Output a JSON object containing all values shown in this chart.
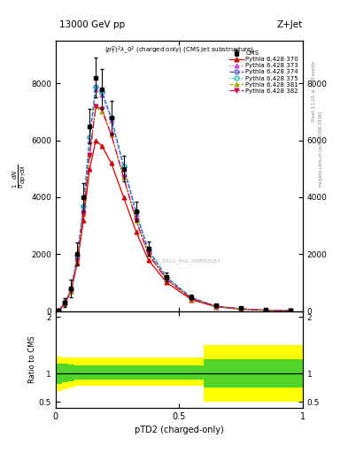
{
  "title_top": "13000 GeV pp",
  "title_right": "Z+Jet",
  "observable_label": "$(p_T^D)^2\\lambda\\_0^2$ (charged only) (CMS jet substructure)",
  "ylabel_main": "$\\frac{1}{\\sigma}\\frac{d^2N}{dp_T\\,d\\lambda}$",
  "xlabel": "pTD2 (charged-only)",
  "ylabel_ratio": "Ratio to CMS",
  "watermark": "CMS_2021_PAS_SMP20187",
  "rivet_label": "Rivet 3.1.10, ≥ 2.6M events",
  "mcplots_label": "mcplots.cern.ch [arXiv:1306.3436]",
  "xbins": [
    0.0,
    0.025,
    0.05,
    0.075,
    0.1,
    0.125,
    0.15,
    0.175,
    0.2,
    0.25,
    0.3,
    0.35,
    0.4,
    0.5,
    0.6,
    0.7,
    0.8,
    0.9,
    1.0
  ],
  "cms_data": [
    20,
    300,
    800,
    2000,
    4000,
    6500,
    8200,
    7800,
    6800,
    5000,
    3500,
    2200,
    1200,
    500,
    200,
    100,
    50,
    20
  ],
  "cms_err_lo": [
    10,
    150,
    300,
    400,
    500,
    600,
    700,
    700,
    600,
    450,
    350,
    250,
    150,
    80,
    40,
    25,
    15,
    8
  ],
  "cms_err_hi": [
    10,
    150,
    300,
    400,
    500,
    600,
    700,
    700,
    600,
    450,
    350,
    250,
    150,
    80,
    40,
    25,
    15,
    8
  ],
  "pythia_370": [
    20,
    280,
    700,
    1700,
    3200,
    5000,
    6000,
    5800,
    5200,
    4000,
    2800,
    1800,
    1000,
    400,
    150,
    70,
    30,
    12
  ],
  "pythia_373": [
    20,
    290,
    750,
    1900,
    3600,
    6000,
    7800,
    7600,
    6700,
    5000,
    3400,
    2100,
    1150,
    460,
    170,
    80,
    32,
    13
  ],
  "pythia_374": [
    20,
    295,
    760,
    1950,
    3700,
    6100,
    7900,
    7700,
    6800,
    5100,
    3500,
    2150,
    1180,
    470,
    175,
    82,
    33,
    13
  ],
  "pythia_375": [
    20,
    295,
    760,
    1950,
    3700,
    6100,
    7900,
    7700,
    6800,
    5100,
    3500,
    2150,
    1180,
    470,
    175,
    82,
    33,
    13
  ],
  "pythia_381": [
    20,
    285,
    720,
    1800,
    3400,
    5500,
    7200,
    7000,
    6200,
    4700,
    3200,
    2000,
    1100,
    440,
    165,
    77,
    31,
    12
  ],
  "pythia_382": [
    20,
    285,
    720,
    1800,
    3400,
    5500,
    7200,
    7100,
    6200,
    4700,
    3200,
    2000,
    1100,
    440,
    165,
    77,
    31,
    12
  ],
  "ratio_yellow_lo": [
    0.7,
    0.72,
    0.75,
    0.78,
    0.78,
    0.78,
    0.78,
    0.78,
    0.78,
    0.78,
    0.78,
    0.78,
    0.78,
    0.78,
    0.5,
    0.5,
    0.5,
    0.5
  ],
  "ratio_yellow_hi": [
    1.3,
    1.28,
    1.28,
    1.28,
    1.28,
    1.28,
    1.28,
    1.28,
    1.28,
    1.28,
    1.28,
    1.28,
    1.28,
    1.28,
    1.5,
    1.5,
    1.5,
    1.5
  ],
  "ratio_green_lo": [
    0.82,
    0.85,
    0.87,
    0.9,
    0.9,
    0.9,
    0.9,
    0.9,
    0.9,
    0.9,
    0.9,
    0.9,
    0.9,
    0.9,
    0.75,
    0.75,
    0.75,
    0.75
  ],
  "ratio_green_hi": [
    1.18,
    1.18,
    1.16,
    1.15,
    1.15,
    1.15,
    1.15,
    1.15,
    1.15,
    1.15,
    1.15,
    1.15,
    1.15,
    1.15,
    1.25,
    1.25,
    1.25,
    1.25
  ],
  "colors": {
    "370": "#cc0000",
    "373": "#cc44cc",
    "374": "#4444cc",
    "375": "#00bbbb",
    "381": "#aaaa00",
    "382": "#cc0055"
  },
  "markers": {
    "370": "^",
    "373": "^",
    "374": "o",
    "375": "o",
    "381": "^",
    "382": "v"
  },
  "linestyles": {
    "370": "-",
    "373": ":",
    "374": "--",
    "375": ":",
    "381": "--",
    "382": "-."
  },
  "ylim_main": [
    0,
    9500
  ],
  "yticks_main": [
    0,
    2000,
    4000,
    6000,
    8000
  ],
  "xlim": [
    0,
    1.0
  ],
  "ylim_ratio": [
    0.4,
    2.1
  ],
  "yticks_ratio": [
    0.5,
    1.0,
    2.0
  ]
}
